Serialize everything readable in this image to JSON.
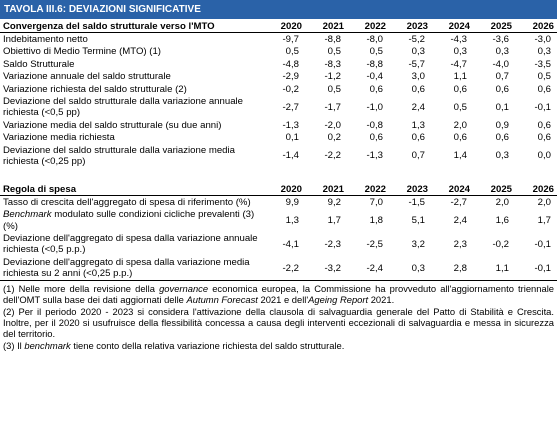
{
  "title": "TAVOLA III.6: DEVIAZIONI SIGNIFICATIVE",
  "sections": [
    {
      "header": "Convergenza del saldo strutturale verso l'MTO",
      "years": [
        "2020",
        "2021",
        "2022",
        "2023",
        "2024",
        "2025",
        "2026"
      ],
      "rows": [
        {
          "label": [
            {
              "text": "Indebitamento netto"
            }
          ],
          "values": [
            "-9,7",
            "-8,8",
            "-8,0",
            "-5,2",
            "-4,3",
            "-3,6",
            "-3,0"
          ]
        },
        {
          "label": [
            {
              "text": "Obiettivo di Medio Termine (MTO) (1)"
            }
          ],
          "values": [
            "0,5",
            "0,5",
            "0,5",
            "0,3",
            "0,3",
            "0,3",
            "0,3"
          ]
        },
        {
          "label": [
            {
              "text": "Saldo Strutturale"
            }
          ],
          "values": [
            "-4,8",
            "-8,3",
            "-8,8",
            "-5,7",
            "-4,7",
            "-4,0",
            "-3,5"
          ]
        },
        {
          "label": [
            {
              "text": "Variazione annuale del saldo strutturale"
            }
          ],
          "values": [
            "-2,9",
            "-1,2",
            "-0,4",
            "3,0",
            "1,1",
            "0,7",
            "0,5"
          ]
        },
        {
          "label": [
            {
              "text": "Variazione richiesta del saldo strutturale (2)"
            }
          ],
          "values": [
            "-0,2",
            "0,5",
            "0,6",
            "0,6",
            "0,6",
            "0,6",
            "0,6"
          ]
        },
        {
          "label": [
            {
              "text": "Deviazione del saldo strutturale dalla variazione annuale richiesta (<0,5 pp)"
            }
          ],
          "values": [
            "-2,7",
            "-1,7",
            "-1,0",
            "2,4",
            "0,5",
            "0,1",
            "-0,1"
          ]
        },
        {
          "label": [
            {
              "text": "Variazione media del saldo strutturale (su due anni)"
            }
          ],
          "values": [
            "-1,3",
            "-2,0",
            "-0,8",
            "1,3",
            "2,0",
            "0,9",
            "0,6"
          ]
        },
        {
          "label": [
            {
              "text": "Variazione media richiesta"
            }
          ],
          "values": [
            "0,1",
            "0,2",
            "0,6",
            "0,6",
            "0,6",
            "0,6",
            "0,6"
          ]
        },
        {
          "label": [
            {
              "text": "Deviazione del saldo strutturale dalla variazione media richiesta (<0,25 pp)"
            }
          ],
          "values": [
            "-1,4",
            "-2,2",
            "-1,3",
            "0,7",
            "1,4",
            "0,3",
            "0,0"
          ]
        }
      ]
    },
    {
      "header": "Regola di spesa",
      "years": [
        "2020",
        "2021",
        "2022",
        "2023",
        "2024",
        "2025",
        "2026"
      ],
      "rows": [
        {
          "label": [
            {
              "text": "Tasso di crescita dell'aggregato di spesa di riferimento (%)"
            }
          ],
          "values": [
            "9,9",
            "9,2",
            "7,0",
            "-1,5",
            "-2,7",
            "2,0",
            "2,0"
          ]
        },
        {
          "label": [
            {
              "text": "Benchmark",
              "italic": true
            },
            {
              "text": " modulato sulle condizioni cicliche prevalenti (3) (%)"
            }
          ],
          "values": [
            "1,3",
            "1,7",
            "1,8",
            "5,1",
            "2,4",
            "1,6",
            "1,7"
          ]
        },
        {
          "label": [
            {
              "text": "Deviazione dell'aggregato di spesa dalla variazione annuale richiesta (<0,5 p.p.)"
            }
          ],
          "values": [
            "-4,1",
            "-2,3",
            "-2,5",
            "3,2",
            "2,3",
            "-0,2",
            "-0,1"
          ]
        },
        {
          "label": [
            {
              "text": "Deviazione dell'aggregato di spesa dalla variazione media richiesta su 2 anni (<0,25 p.p.)"
            }
          ],
          "values": [
            "-2,2",
            "-3,2",
            "-2,4",
            "0,3",
            "2,8",
            "1,1",
            "-0,1"
          ]
        }
      ]
    }
  ],
  "footnotes": [
    [
      {
        "text": "(1) Nelle more della revisione della "
      },
      {
        "text": "governance",
        "italic": true
      },
      {
        "text": " economica europea, la Commissione ha provveduto all'aggiornamento triennale dell'OMT sulla base dei dati aggiornati delle "
      },
      {
        "text": "Autumn Forecast",
        "italic": true
      },
      {
        "text": " 2021 e dell'"
      },
      {
        "text": "Ageing Report",
        "italic": true
      },
      {
        "text": " 2021."
      }
    ],
    [
      {
        "text": "(2) Per il periodo 2020 - 2023 si considera l'attivazione della clausola di salvaguardia generale del Patto di Stabilità e Crescita. Inoltre, per il 2020 si usufruisce della flessibilità concessa a causa degli interventi eccezionali di salvaguardia e messa in sicurezza del territorio."
      }
    ],
    [
      {
        "text": "(3) Il "
      },
      {
        "text": "benchmark",
        "italic": true
      },
      {
        "text": " tiene conto della relativa variazione richiesta del saldo strutturale."
      }
    ]
  ]
}
